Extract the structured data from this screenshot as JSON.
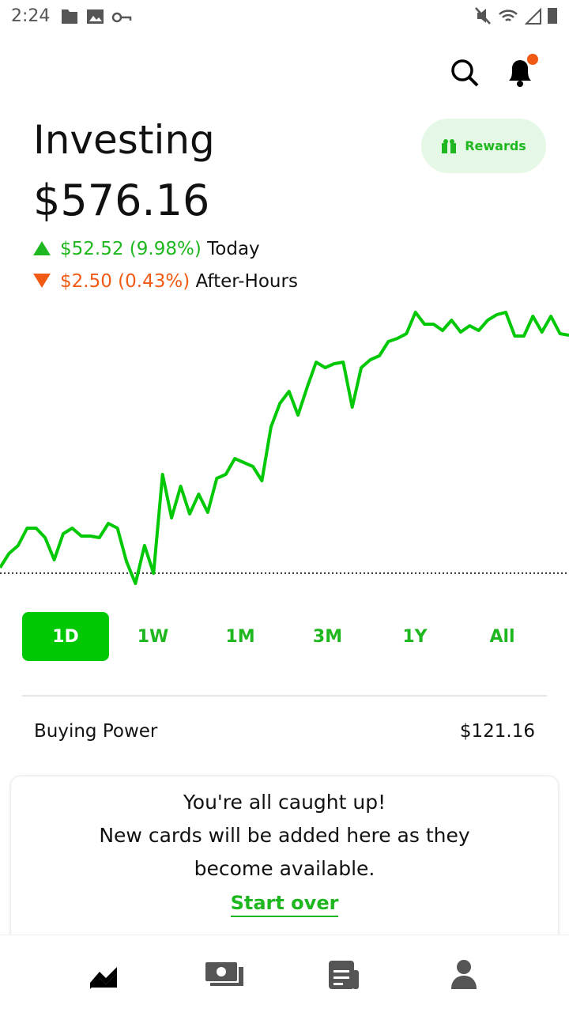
{
  "status_bar": {
    "time": "2:24"
  },
  "header": {
    "rewards": "Rewards"
  },
  "portfolio": {
    "title": "Investing",
    "value": "$576.16",
    "today": {
      "change": "$52.52 (9.98%)",
      "label": "Today"
    },
    "after_hours": {
      "change": "$2.50 (0.43%)",
      "label": "After-Hours"
    }
  },
  "chart_data": {
    "type": "line",
    "color": "#00c805",
    "reference_value": 523.64,
    "ylim": [
      521,
      584
    ],
    "values": [
      524.85,
      528,
      529.75,
      533.6,
      533.6,
      531.5,
      526.6,
      532.38,
      533.6,
      531.85,
      531.85,
      531.5,
      534.65,
      533.6,
      526.25,
      521.35,
      529.75,
      523.6,
      545.5,
      535.88,
      542.88,
      536.75,
      541.13,
      537.1,
      544.63,
      545.5,
      549,
      548.13,
      547.25,
      544.1,
      556,
      561.25,
      563.88,
      558.63,
      564.75,
      570.35,
      569.13,
      570,
      570.35,
      560.38,
      569.13,
      570.88,
      571.75,
      574.9,
      575.6,
      576.65,
      581.38,
      578.75,
      578.75,
      577.35,
      579.63,
      577,
      578.4,
      577.35,
      579.63,
      580.85,
      581.38,
      576.13,
      576.13,
      580.5,
      577,
      580.5,
      576.65,
      576.3
    ]
  },
  "ranges": {
    "items": [
      "1D",
      "1W",
      "1M",
      "3M",
      "1Y",
      "All"
    ],
    "selected": 0
  },
  "buying_power": {
    "label": "Buying Power",
    "value": "$121.16"
  },
  "card": {
    "lines": [
      "You're all caught up!",
      "New cards will be added here as they",
      "become available."
    ],
    "action": "Start over"
  }
}
